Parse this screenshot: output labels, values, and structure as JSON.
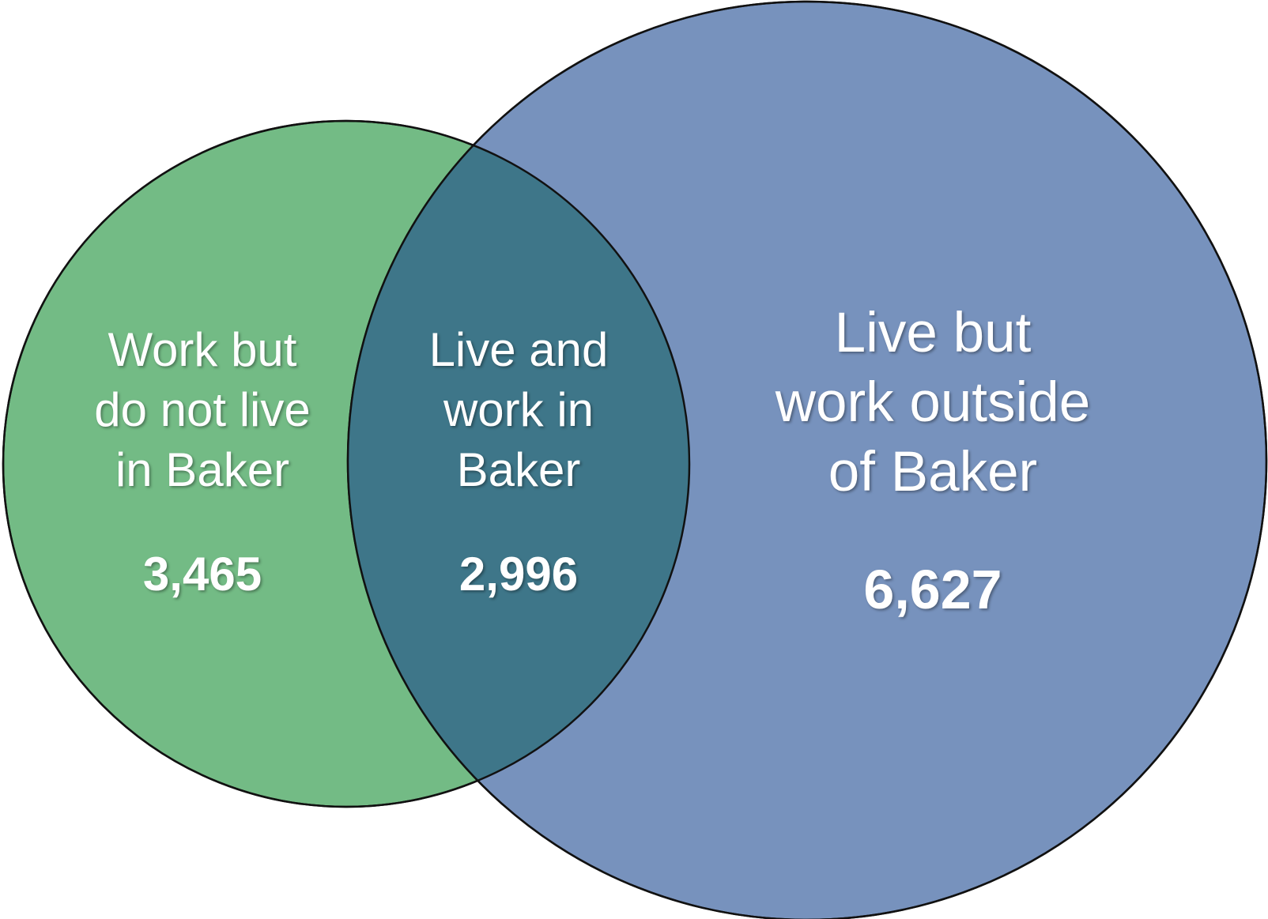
{
  "colors": {
    "work_only": "#73bb85",
    "live_only": "#7792bd",
    "overlap": "#3e7689",
    "outline": "#111111",
    "text": "#ffffff"
  },
  "regions": {
    "work_only": {
      "label_lines": [
        "Work but",
        "do not live",
        "in Baker"
      ],
      "value": "3,465"
    },
    "both": {
      "label_lines": [
        "Live and",
        "work in",
        "Baker"
      ],
      "value": "2,996"
    },
    "live_only": {
      "label_lines": [
        "Live but",
        "work outside",
        "of Baker"
      ],
      "value": "6,627"
    }
  }
}
